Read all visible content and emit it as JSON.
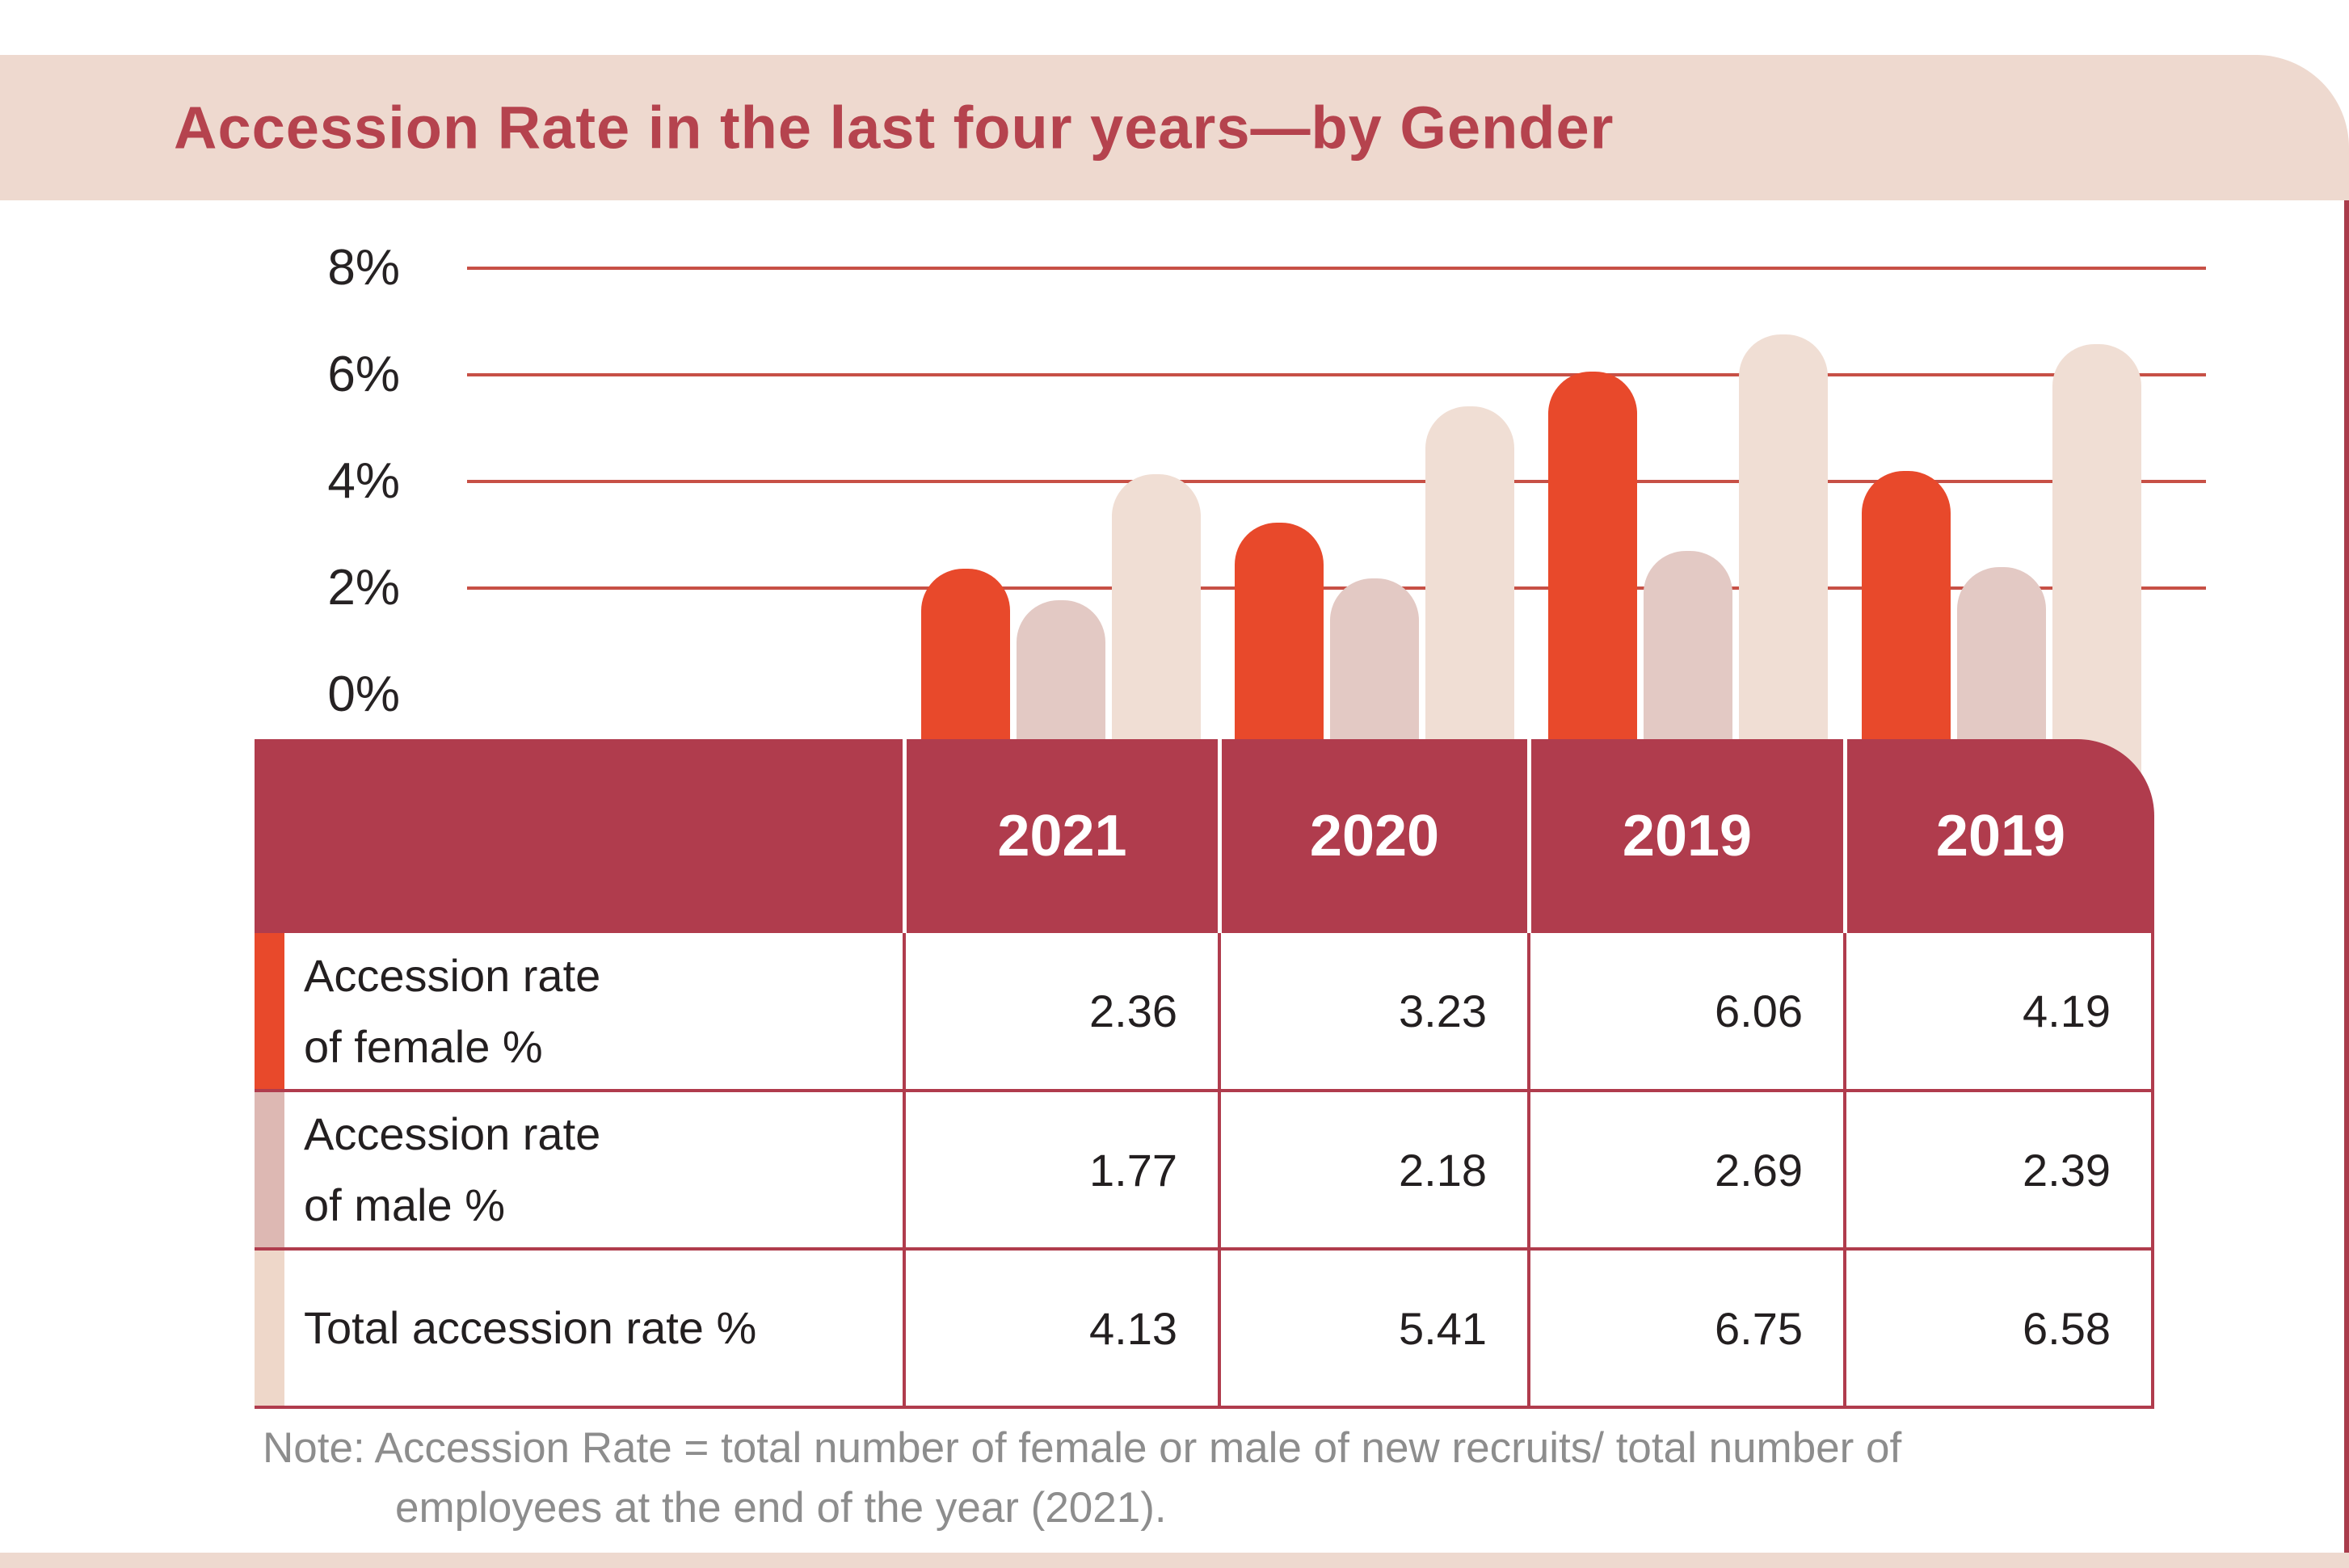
{
  "title": "Accession Rate in the last four years—by Gender",
  "colors": {
    "title_band": "#eed9cf",
    "title_text": "#b5434e",
    "header_maroon": "#b03c4d",
    "gridline": "#c75046",
    "bar_female": "#e8492b",
    "bar_male": "#e3c9c4",
    "bar_total": "#f0ded4",
    "tab_female": "#e8492b",
    "tab_male": "#ddb8b3",
    "tab_total": "#eed7c9",
    "note_gray": "#8d8d8d",
    "right_strip": "#a93c4b"
  },
  "chart_data": {
    "type": "bar",
    "title": "Accession Rate in the last four years—by Gender",
    "categories": [
      "2021",
      "2020",
      "2019",
      "2019"
    ],
    "series": [
      {
        "name": "Accession rate of female %",
        "values": [
          2.36,
          3.23,
          6.06,
          4.19
        ],
        "color": "#e8492b"
      },
      {
        "name": "Accession rate of male %",
        "values": [
          1.77,
          2.18,
          2.69,
          2.39
        ],
        "color": "#e3c9c4"
      },
      {
        "name": "Total accession rate %",
        "values": [
          4.13,
          5.41,
          6.75,
          6.58
        ],
        "color": "#f0ded4"
      }
    ],
    "xlabel": "",
    "ylabel": "",
    "ylim": [
      0,
      8
    ],
    "yticks": [
      "8%",
      "6%",
      "4%",
      "2%",
      "0%"
    ],
    "grid": true,
    "legend_position": "none"
  },
  "table": {
    "columns": [
      "2021",
      "2020",
      "2019",
      "2019"
    ],
    "rows": [
      {
        "label_line1": "Accession rate",
        "label_line2": "of female %",
        "values": [
          "2.36",
          "3.23",
          "6.06",
          "4.19"
        ]
      },
      {
        "label_line1": "Accession rate",
        "label_line2": "of male %",
        "values": [
          "1.77",
          "2.18",
          "2.69",
          "2.39"
        ]
      },
      {
        "label_line1": "Total accession rate %",
        "label_line2": "",
        "values": [
          "4.13",
          "5.41",
          "6.75",
          "6.58"
        ]
      }
    ]
  },
  "note": {
    "line1": "Note: Accession Rate = total number of female or male of new recruits/ total number of",
    "line2": "employees at the end of the year (2021)."
  }
}
